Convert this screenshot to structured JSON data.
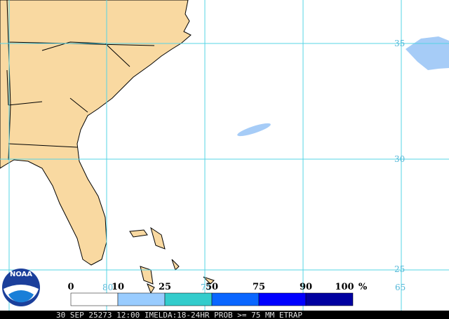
{
  "map": {
    "lat_labels": [
      "35",
      "30",
      "25"
    ],
    "lon_labels": [
      "80",
      "75",
      "65"
    ]
  },
  "legend": {
    "ticks": [
      0,
      10,
      25,
      50,
      75,
      90,
      100
    ],
    "unit": "%",
    "colors": [
      "#ffffff",
      "#99ccff",
      "#33cccc",
      "#0a66ff",
      "#0000ff",
      "#0000a0"
    ]
  },
  "logo": {
    "text": "NOAA"
  },
  "caption": "30 SEP 25273 12:00 IMELDA:18-24HR PROB >= 75 MM ETRAP"
}
